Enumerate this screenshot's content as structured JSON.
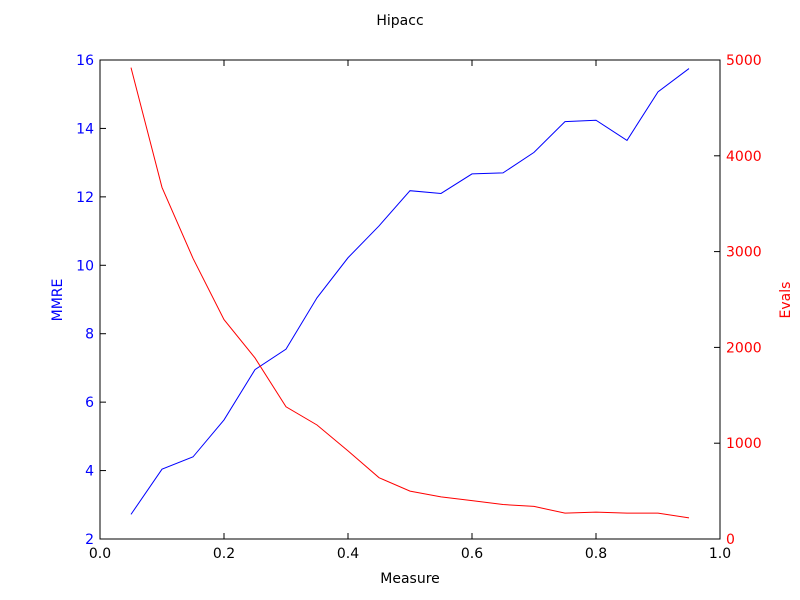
{
  "chart_data": {
    "type": "line",
    "title": "Hipacc",
    "xlabel": "Measure",
    "ylabel_left": "MMRE",
    "ylabel_right": "Evals",
    "xlim": [
      0.0,
      1.0
    ],
    "ylim_left": [
      2,
      16
    ],
    "ylim_right": [
      0,
      5000
    ],
    "x_ticks": [
      "0.0",
      "0.2",
      "0.4",
      "0.6",
      "0.8",
      "1.0"
    ],
    "y_ticks_left": [
      "2",
      "4",
      "6",
      "8",
      "10",
      "12",
      "14",
      "16"
    ],
    "y_ticks_right": [
      "0",
      "1000",
      "2000",
      "3000",
      "4000",
      "5000"
    ],
    "grid": false,
    "x": [
      0.05,
      0.1,
      0.15,
      0.2,
      0.25,
      0.3,
      0.35,
      0.4,
      0.45,
      0.5,
      0.55,
      0.6,
      0.65,
      0.7,
      0.75,
      0.8,
      0.85,
      0.9,
      0.95
    ],
    "series": [
      {
        "axis": "left",
        "color": "#0000ff",
        "values": [
          2.72,
          4.04,
          4.4,
          5.48,
          6.95,
          7.55,
          9.05,
          10.22,
          11.15,
          12.18,
          12.1,
          12.67,
          12.7,
          13.3,
          14.2,
          14.24,
          13.65,
          15.07,
          15.75
        ]
      },
      {
        "axis": "right",
        "color": "#ff0000",
        "values": [
          4920,
          3670,
          2930,
          2290,
          1890,
          1380,
          1190,
          920,
          640,
          500,
          440,
          400,
          360,
          340,
          270,
          280,
          270,
          270,
          220
        ]
      }
    ]
  }
}
